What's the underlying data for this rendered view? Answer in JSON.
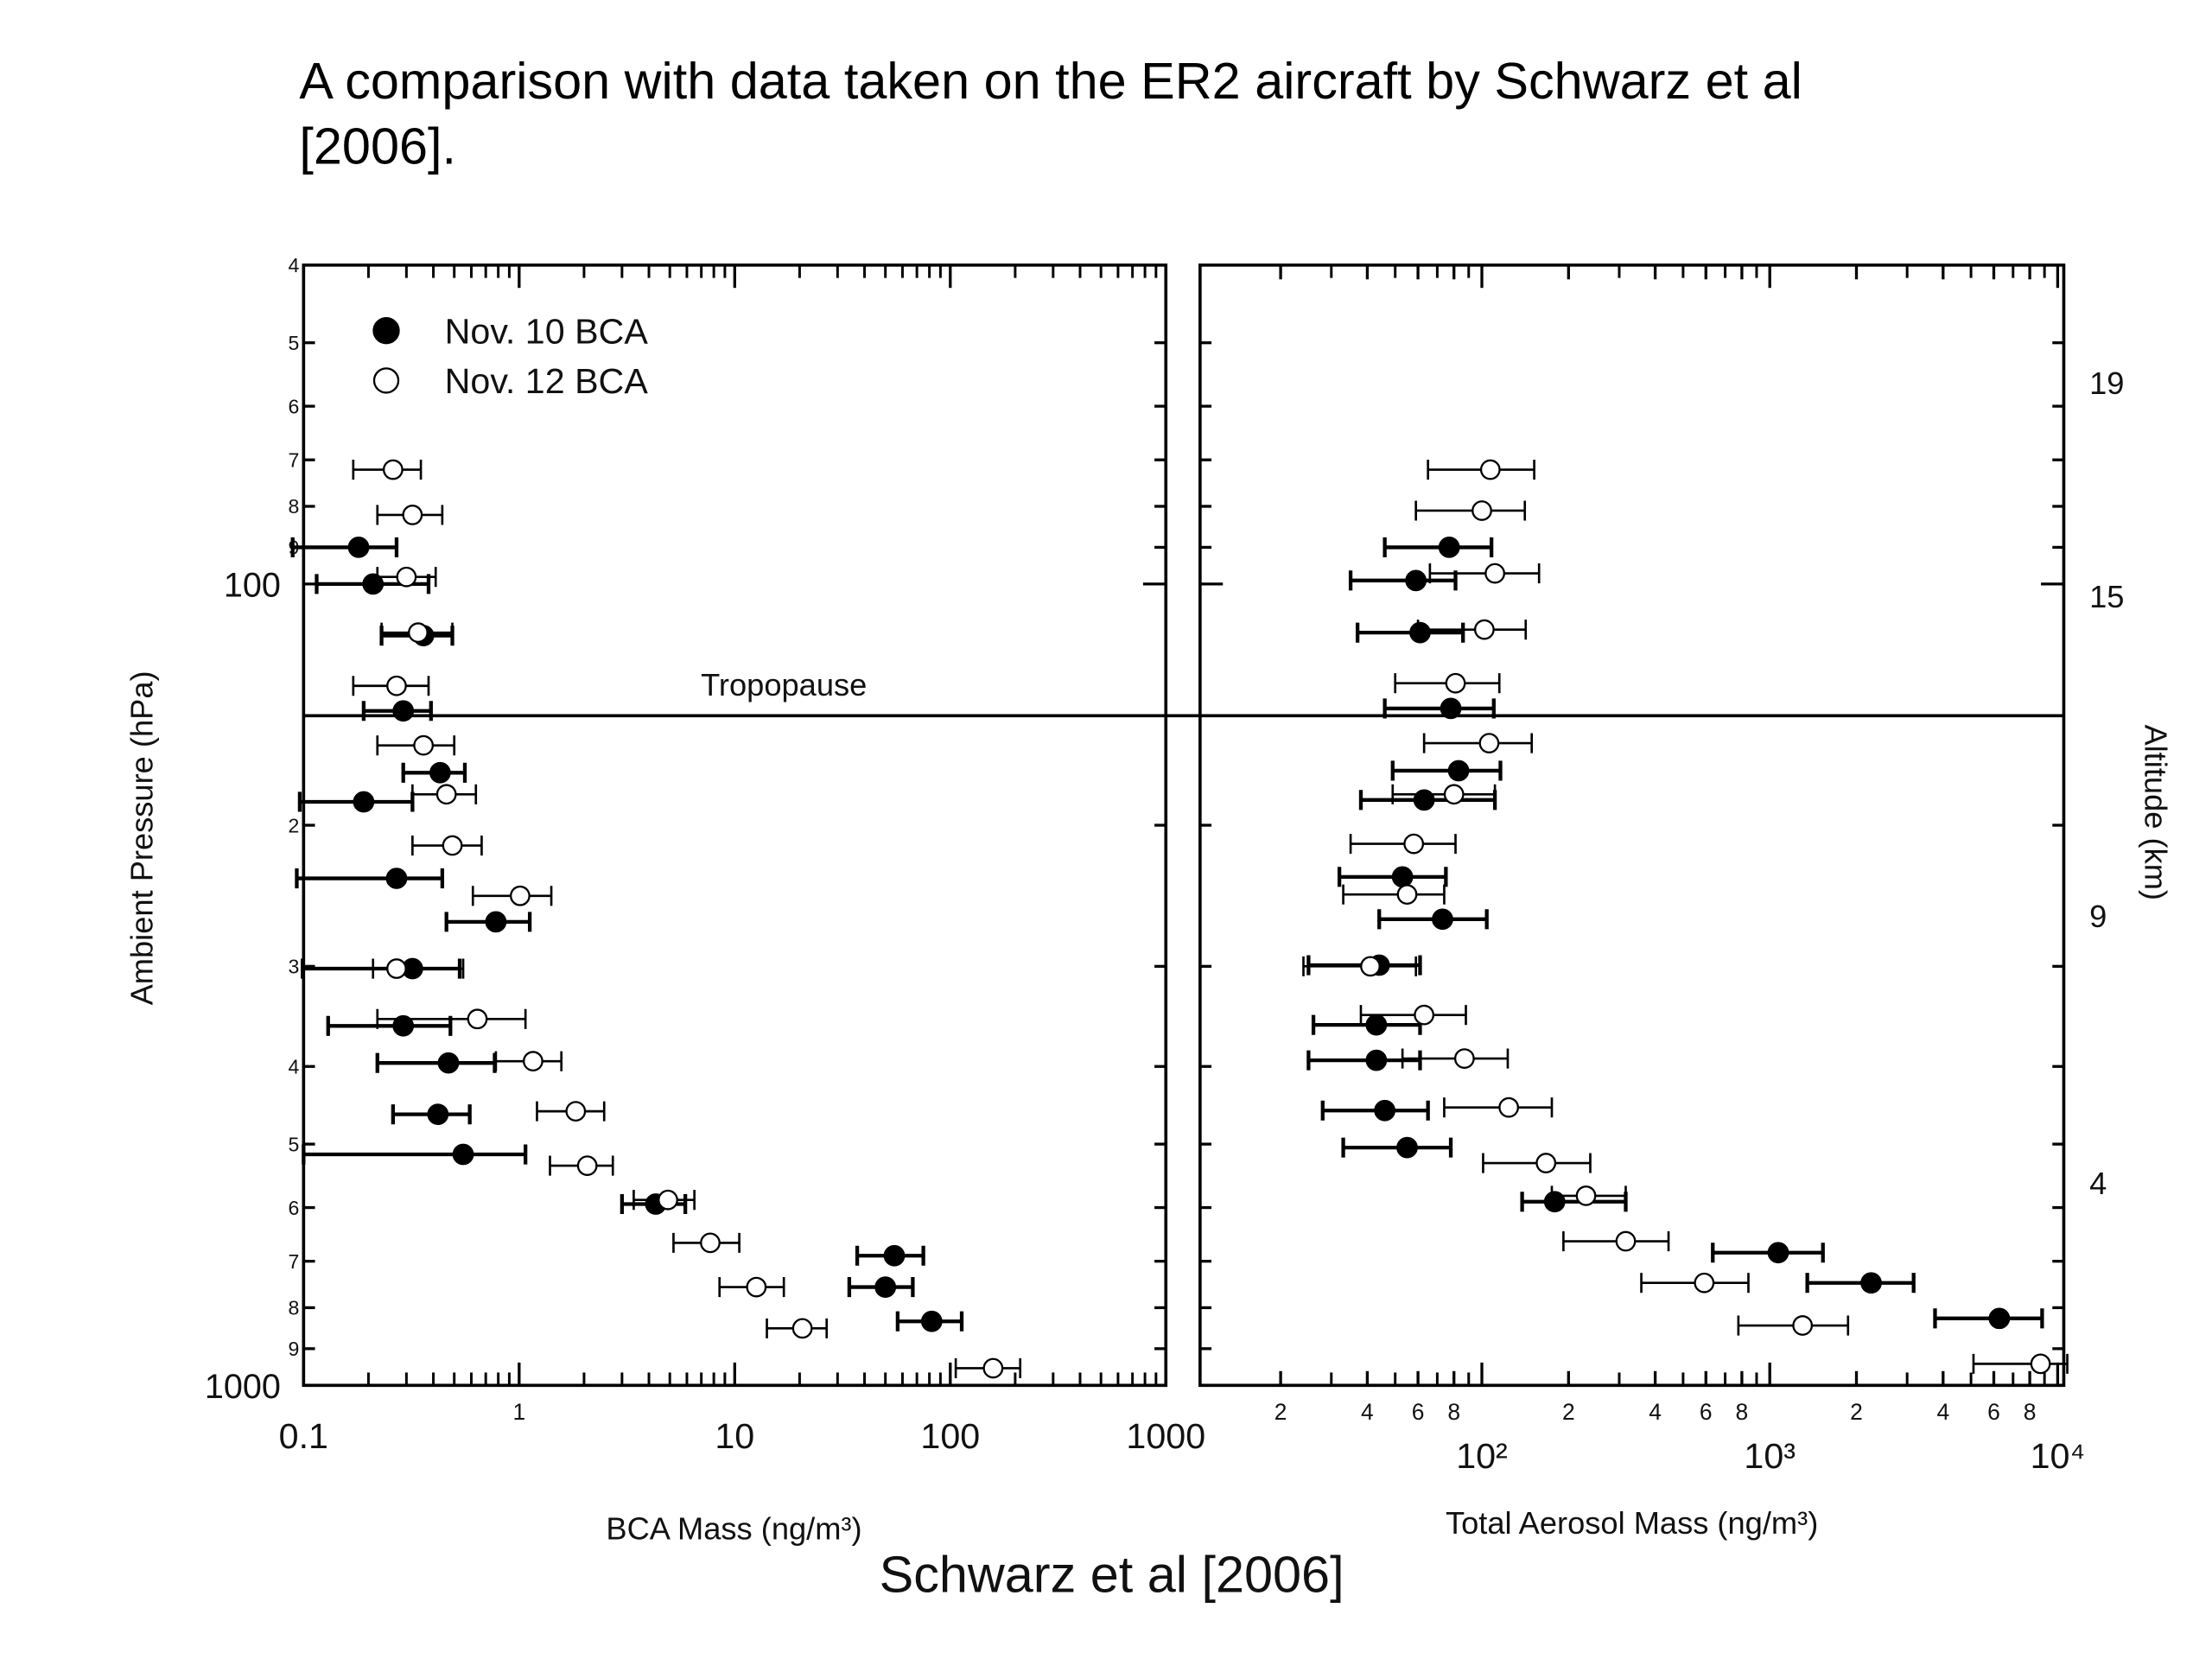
{
  "title": "A comparison with data taken on the ER2 aircraft by Schwarz et al [2006].",
  "caption": "Schwarz et al [2006]",
  "tropopause": {
    "label": "Tropopause",
    "value": 146
  },
  "chart_data": [
    {
      "type": "scatter",
      "xlabel": "BCA Mass (ng/m³)",
      "ylabel": "Ambient Pressure (hPa)",
      "xscale": "log",
      "yscale": "log",
      "legend": "upper left",
      "xlim": [
        0.1,
        1000
      ],
      "ylim": [
        1000,
        40
      ],
      "xticks": [
        0.1,
        1,
        10,
        100,
        1000
      ],
      "xminorticks": [
        0.2,
        0.3,
        0.4,
        0.5,
        0.6,
        0.7,
        0.8,
        0.9,
        2,
        3,
        4,
        5,
        6,
        7,
        8,
        9,
        20,
        30,
        40,
        50,
        60,
        70,
        80,
        90,
        200,
        300,
        400,
        500,
        600,
        700,
        800,
        900
      ],
      "yticks": [
        {
          "value": 40,
          "label": "4"
        },
        {
          "value": 50,
          "label": "5"
        },
        {
          "value": 60,
          "label": "6"
        },
        {
          "value": 70,
          "label": "7"
        },
        {
          "value": 80,
          "label": "8"
        },
        {
          "value": 90,
          "label": "9"
        },
        100,
        {
          "value": 200,
          "label": "2"
        },
        {
          "value": 300,
          "label": "3"
        },
        {
          "value": 400,
          "label": "4"
        },
        {
          "value": 500,
          "label": "5"
        },
        {
          "value": 600,
          "label": "6"
        },
        {
          "value": 700,
          "label": "7"
        },
        {
          "value": 800,
          "label": "8"
        },
        {
          "value": 900,
          "label": "9"
        },
        1000
      ],
      "series": [
        {
          "name": "Nov. 10 BCA",
          "color": "#000000",
          "marker": "filled",
          "x": [
            0.18,
            0.21,
            0.36,
            0.29,
            0.43,
            0.19,
            0.27,
            0.78,
            0.32,
            0.29,
            0.47,
            0.42,
            0.55,
            4.3,
            55,
            50,
            82
          ],
          "y": [
            90,
            100,
            116,
            144,
            172,
            187,
            233,
            264,
            302,
            356,
            396,
            459,
            515,
            594,
            689,
            754,
            832
          ],
          "x_low": [
            0.089,
            0.115,
            0.23,
            0.19,
            0.29,
            0.096,
            0.093,
            0.46,
            0.099,
            0.13,
            0.22,
            0.26,
            0.1,
            3.0,
            37,
            34,
            57
          ],
          "x_high": [
            0.27,
            0.38,
            0.49,
            0.39,
            0.56,
            0.32,
            0.44,
            1.12,
            0.53,
            0.48,
            0.77,
            0.59,
            1.07,
            5.9,
            75,
            67,
            113
          ]
        },
        {
          "name": "Nov. 12 BCA",
          "color": "#000000",
          "marker": "open",
          "x": [
            0.26,
            0.32,
            0.3,
            0.34,
            0.27,
            0.36,
            0.46,
            0.49,
            1.01,
            0.27,
            0.64,
            1.16,
            1.83,
            2.07,
            4.9,
            7.7,
            12.6,
            20.6,
            158
          ],
          "y": [
            72,
            82,
            98,
            115,
            134,
            159,
            183,
            212,
            245,
            302,
            349,
            394,
            455,
            532,
            587,
            664,
            754,
            849,
            952
          ],
          "x_low": [
            0.17,
            0.22,
            0.22,
            0.23,
            0.17,
            0.22,
            0.32,
            0.32,
            0.61,
            0.21,
            0.22,
            0.78,
            1.21,
            1.39,
            3.4,
            5.2,
            8.5,
            14.1,
            106
          ],
          "x_high": [
            0.35,
            0.44,
            0.41,
            0.49,
            0.38,
            0.5,
            0.63,
            0.67,
            1.41,
            0.55,
            1.07,
            1.57,
            2.48,
            2.72,
            6.5,
            10.5,
            16.9,
            26.7,
            211
          ]
        }
      ]
    },
    {
      "type": "scatter",
      "xlabel": "Total Aerosol Mass (ng/m³)",
      "y2label": "Altitude (km)",
      "xscale": "log",
      "yscale": "log",
      "xlim": [
        10.5,
        10500
      ],
      "ylim": [
        1000,
        40
      ],
      "y2lim": [
        0.2,
        21.2
      ],
      "y2ticks": [
        4,
        9,
        15,
        19
      ],
      "xticks": [
        {
          "value": 20,
          "label": "2"
        },
        {
          "value": 40,
          "label": "4"
        },
        {
          "value": 60,
          "label": "6"
        },
        {
          "value": 80,
          "label": "8"
        },
        {
          "value": 100,
          "label": "10²"
        },
        {
          "value": 200,
          "label": "2"
        },
        {
          "value": 400,
          "label": "4"
        },
        {
          "value": 600,
          "label": "6"
        },
        {
          "value": 800,
          "label": "8"
        },
        {
          "value": 1000,
          "label": "10³"
        },
        {
          "value": 2000,
          "label": "2"
        },
        {
          "value": 4000,
          "label": "4"
        },
        {
          "value": 6000,
          "label": "6"
        },
        {
          "value": 8000,
          "label": "8"
        },
        {
          "value": 10000,
          "label": "10⁴"
        }
      ],
      "xminorticks": [
        30,
        50,
        70,
        90,
        300,
        500,
        700,
        900,
        3000,
        5000,
        7000,
        9000
      ],
      "yticks": [
        40,
        50,
        60,
        70,
        80,
        90,
        100,
        200,
        300,
        400,
        500,
        600,
        700,
        800,
        900,
        1000
      ],
      "series": [
        {
          "color": "#000000",
          "marker": "filled",
          "x": [
            77,
            59,
            61,
            78,
            83,
            63,
            53,
            73,
            44,
            43,
            43,
            46,
            55,
            179,
            1070,
            2250,
            6270
          ],
          "y": [
            90,
            99,
            115,
            143,
            171,
            186,
            232,
            262,
            299,
            355,
            393,
            454,
            505,
            590,
            683,
            745,
            825
          ],
          "x_low": [
            46,
            35,
            37,
            46,
            49,
            38,
            32,
            44,
            25,
            26,
            25,
            28,
            33,
            138,
            634,
            1350,
            3750
          ],
          "x_high": [
            108,
            81,
            86,
            110,
            116,
            111,
            75,
            104,
            61,
            61,
            61,
            65,
            78,
            316,
            1530,
            3160,
            8830
          ]
        },
        {
          "color": "#000000",
          "marker": "open",
          "x": [
            107,
            100,
            111,
            102,
            81,
            106,
            80,
            58,
            55,
            41,
            63,
            87,
            124,
            167,
            230,
            316,
            592,
            1300,
            8720
          ],
          "y": [
            72,
            81,
            97,
            114,
            133,
            158,
            183,
            211,
            244,
            300,
            345,
            391,
            450,
            528,
            580,
            661,
            745,
            842,
            940
          ],
          "x_low": [
            65,
            59,
            66,
            60,
            50,
            63,
            49,
            35,
            33,
            24,
            38,
            53,
            74,
            101,
            175,
            192,
            358,
            778,
            5100
          ],
          "x_high": [
            152,
            141,
            158,
            142,
            115,
            149,
            111,
            81,
            74,
            59,
            88,
            123,
            175,
            238,
            316,
            445,
            843,
            1870,
            10800
          ]
        }
      ]
    }
  ]
}
